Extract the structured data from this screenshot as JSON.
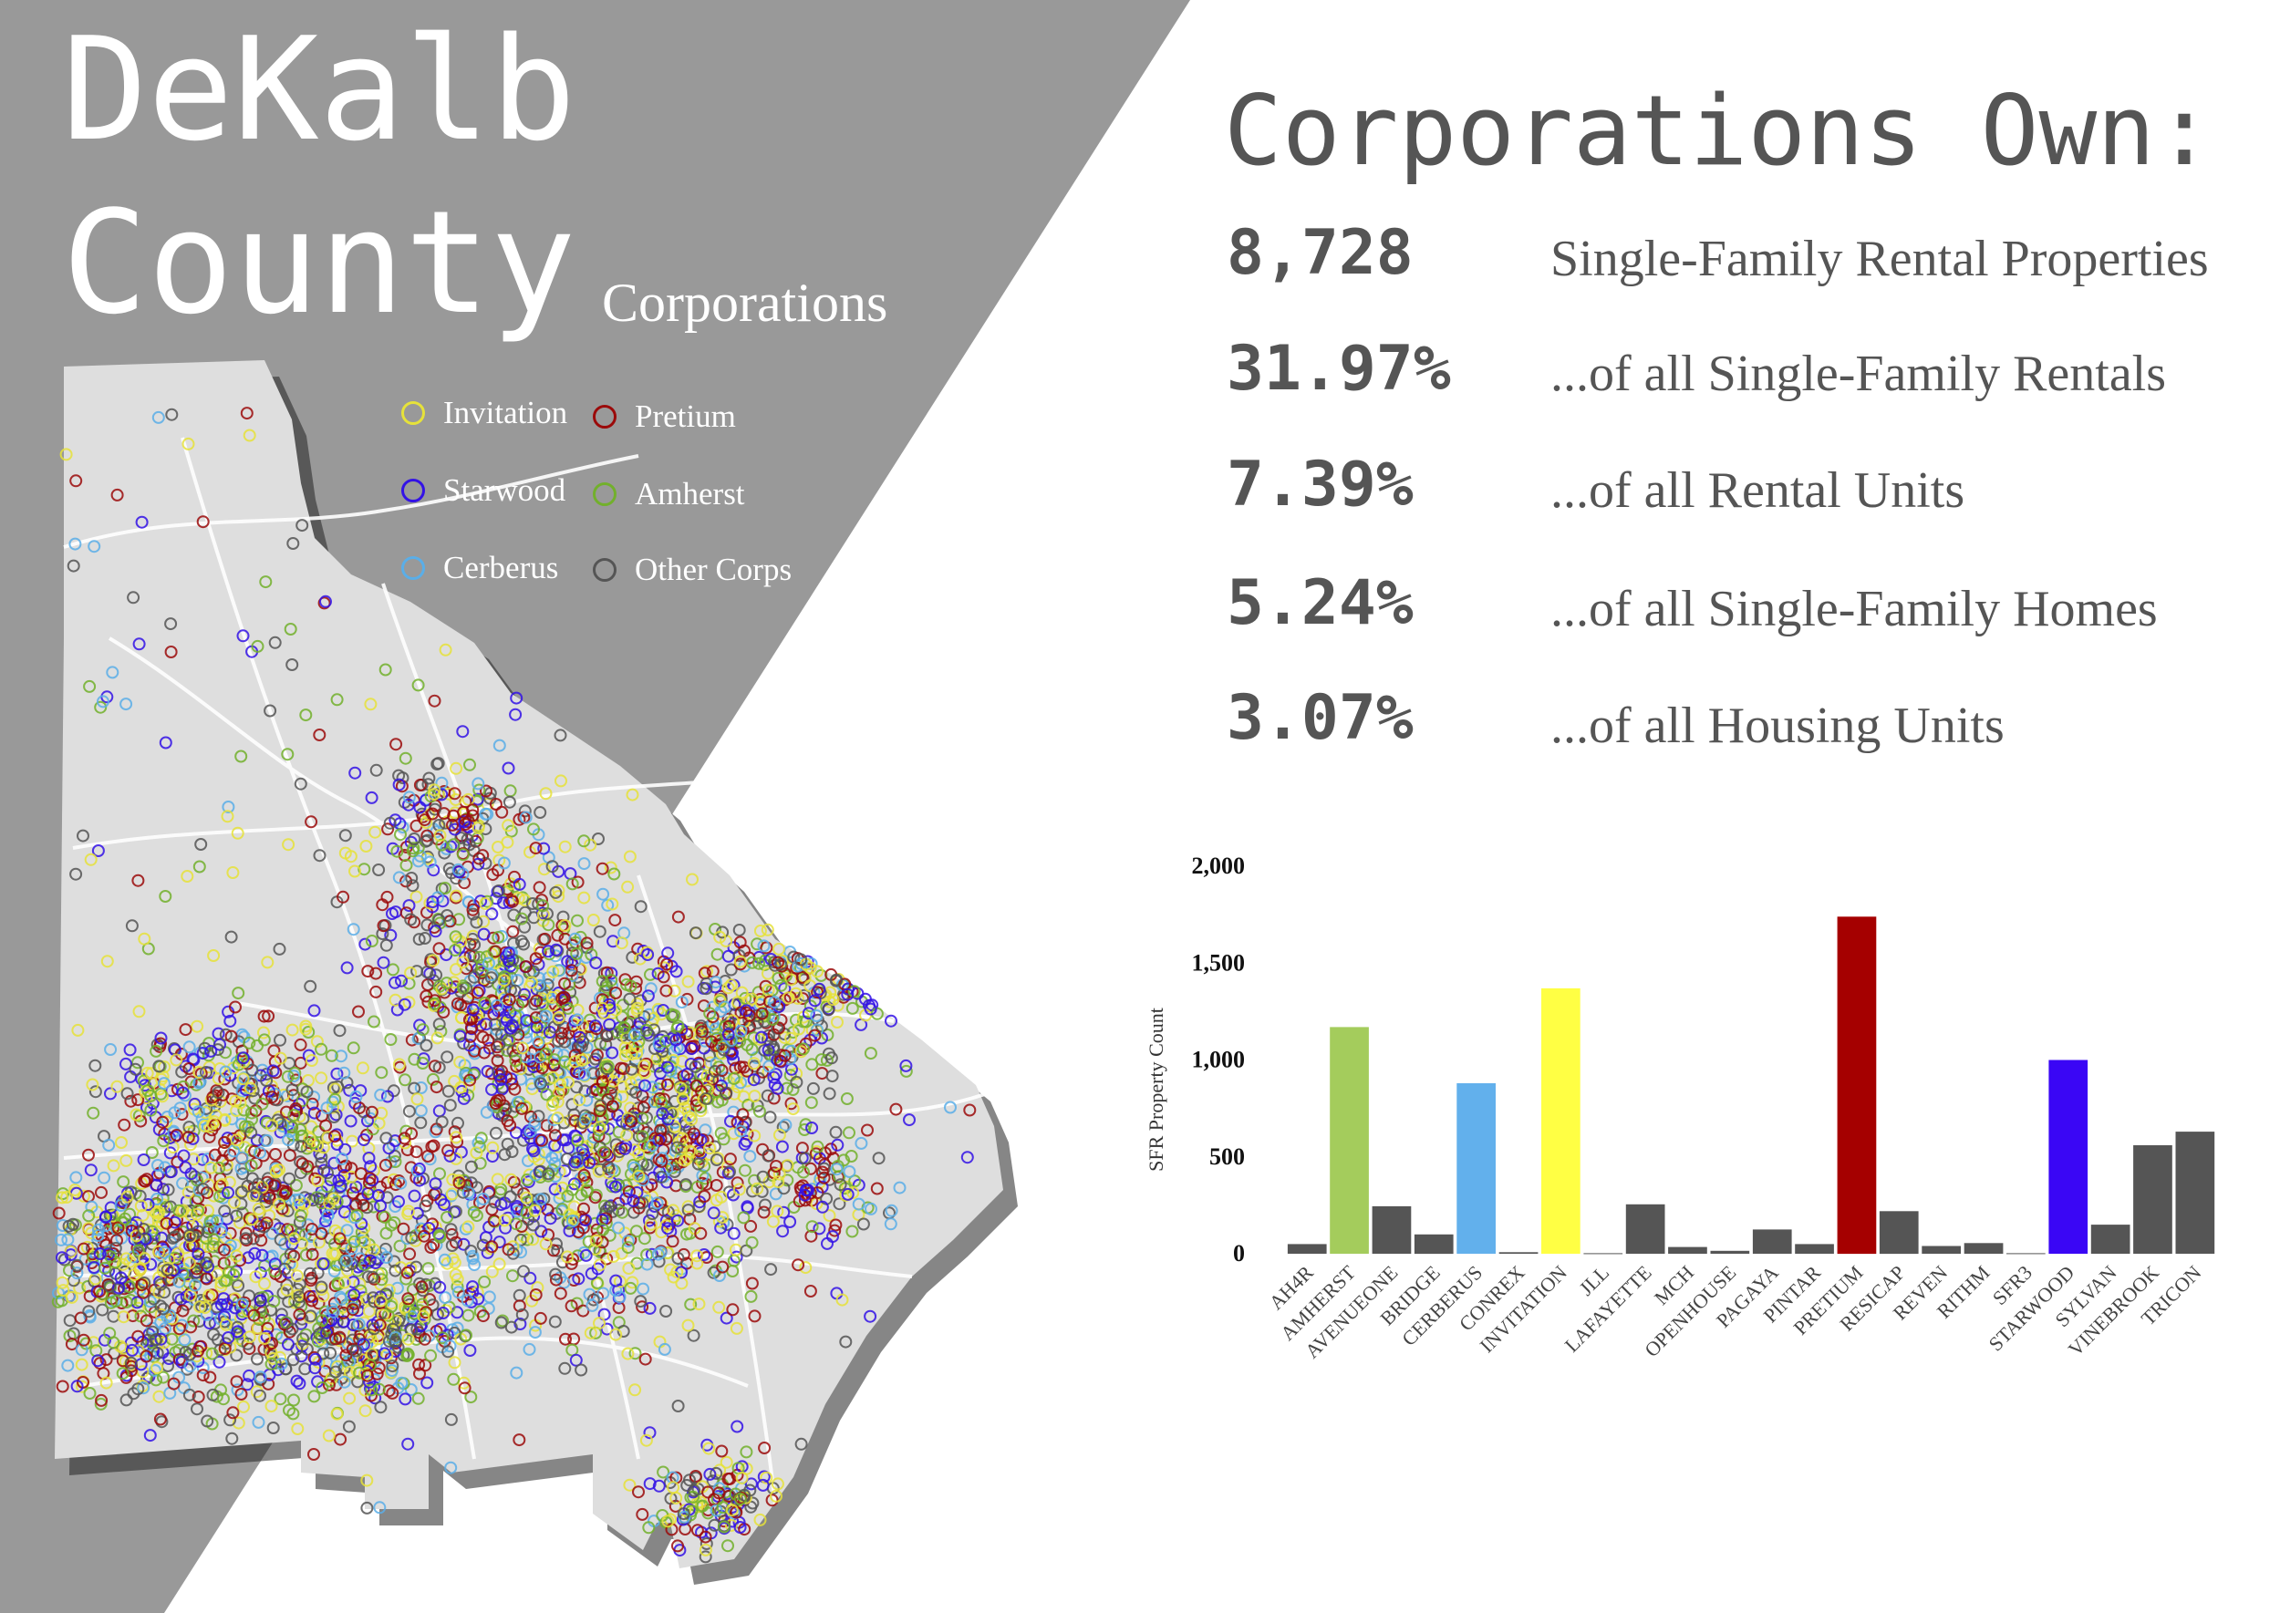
{
  "header": {
    "title_line1": "DeKalb",
    "title_line2": "County",
    "subtitle": "Corporations"
  },
  "legend": [
    {
      "label": "Invitation",
      "color": "#e6e23a"
    },
    {
      "label": "Pretium",
      "color": "#9b0a0a"
    },
    {
      "label": "Starwood",
      "color": "#3312e6"
    },
    {
      "label": "Amherst",
      "color": "#72b02c"
    },
    {
      "label": "Cerberus",
      "color": "#5aaee8"
    },
    {
      "label": "Other Corps",
      "color": "#555555"
    }
  ],
  "stats": {
    "heading": "Corporations Own:",
    "items": [
      {
        "value": "8,728",
        "label": "Single-Family Rental Properties"
      },
      {
        "value": "31.97%",
        "label": "...of all Single-Family Rentals"
      },
      {
        "value": "7.39%",
        "label": "...of all Rental Units"
      },
      {
        "value": "5.24%",
        "label": "...of all Single-Family Homes"
      },
      {
        "value": "3.07%",
        "label": "...of all Housing Units"
      }
    ]
  },
  "colors": {
    "background_gray": "#999999",
    "map_fill": "#dedede",
    "text_dark": "#555555",
    "bar_other": "#555555"
  },
  "chart_data": {
    "type": "bar",
    "title": "",
    "xlabel": "",
    "ylabel": "SFR Property Count",
    "ylim": [
      0,
      2000
    ],
    "yticks": [
      0,
      500,
      1000,
      1500,
      2000
    ],
    "ytick_labels": [
      "0",
      "500",
      "1,000",
      "1,500",
      "2,000"
    ],
    "categories": [
      "AH4R",
      "AMHERST",
      "AVENUEONE",
      "BRIDGE",
      "CERBERUS",
      "CONREX",
      "INVITATION",
      "JLL",
      "LAFAYETTE",
      "MCH",
      "OPENHOUSE",
      "PAGAYA",
      "PINTAR",
      "PRETIUM",
      "RESICAP",
      "REVEN",
      "RITHM",
      "SFR3",
      "STARWOOD",
      "SYLVAN",
      "VINEBROOK",
      "TRICON"
    ],
    "values": [
      50,
      1170,
      245,
      100,
      880,
      8,
      1370,
      3,
      255,
      35,
      15,
      125,
      50,
      1740,
      220,
      40,
      55,
      3,
      1000,
      150,
      560,
      630
    ],
    "bar_colors": [
      "#555555",
      "#a4cc5c",
      "#555555",
      "#555555",
      "#62b0ec",
      "#555555",
      "#ffff44",
      "#555555",
      "#555555",
      "#555555",
      "#555555",
      "#555555",
      "#555555",
      "#a50000",
      "#555555",
      "#555555",
      "#555555",
      "#555555",
      "#3a06f5",
      "#555555",
      "#555555",
      "#555555"
    ]
  }
}
